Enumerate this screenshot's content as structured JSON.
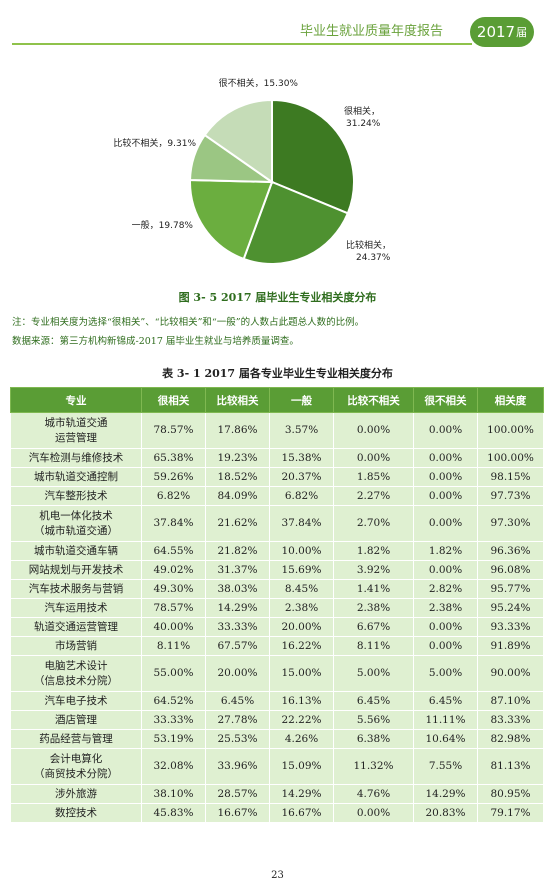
{
  "header": {
    "title": "毕业生就业质量年度报告",
    "year_main": "2017",
    "year_suffix": "届"
  },
  "chart_data": {
    "type": "pie",
    "title": "图 3- 5   2017 届毕业生专业相关度分布",
    "slices": [
      {
        "label": "很相关",
        "value": 31.24,
        "display": "31.24%",
        "color": "#3d7a22"
      },
      {
        "label": "比较相关",
        "value": 24.37,
        "display": "24.37%",
        "color": "#4e9130"
      },
      {
        "label": "一般",
        "value": 19.78,
        "display": "19.78%",
        "color": "#6bae3f"
      },
      {
        "label": "比较不相关",
        "value": 9.31,
        "display": "9.31%",
        "color": "#9bc683"
      },
      {
        "label": "很不相关",
        "value": 15.3,
        "display": "15.30%",
        "color": "#c5dcb7"
      }
    ]
  },
  "notes": {
    "note1": "注：专业相关度为选择“很相关”、“比较相关”和“一般”的人数占此题总人数的比例。",
    "note2": "数据来源：第三方机构新锦成-2017 届毕业生就业与培养质量调查。"
  },
  "table": {
    "caption": "表 3- 1   2017 届各专业毕业生专业相关度分布",
    "headers": [
      "专业",
      "很相关",
      "比较相关",
      "一般",
      "比较不相关",
      "很不相关",
      "相关度"
    ],
    "rows": [
      {
        "major": [
          "城市轨道交通",
          "运营管理"
        ],
        "vals": [
          "78.57%",
          "17.86%",
          "3.57%",
          "0.00%",
          "0.00%",
          "100.00%"
        ]
      },
      {
        "major": [
          "汽车检测与维修技术"
        ],
        "vals": [
          "65.38%",
          "19.23%",
          "15.38%",
          "0.00%",
          "0.00%",
          "100.00%"
        ]
      },
      {
        "major": [
          "城市轨道交通控制"
        ],
        "vals": [
          "59.26%",
          "18.52%",
          "20.37%",
          "1.85%",
          "0.00%",
          "98.15%"
        ]
      },
      {
        "major": [
          "汽车整形技术"
        ],
        "vals": [
          "6.82%",
          "84.09%",
          "6.82%",
          "2.27%",
          "0.00%",
          "97.73%"
        ]
      },
      {
        "major": [
          "机电一体化技术",
          "（城市轨道交通）"
        ],
        "vals": [
          "37.84%",
          "21.62%",
          "37.84%",
          "2.70%",
          "0.00%",
          "97.30%"
        ]
      },
      {
        "major": [
          "城市轨道交通车辆"
        ],
        "vals": [
          "64.55%",
          "21.82%",
          "10.00%",
          "1.82%",
          "1.82%",
          "96.36%"
        ]
      },
      {
        "major": [
          "网站规划与开发技术"
        ],
        "vals": [
          "49.02%",
          "31.37%",
          "15.69%",
          "3.92%",
          "0.00%",
          "96.08%"
        ]
      },
      {
        "major": [
          "汽车技术服务与营销"
        ],
        "vals": [
          "49.30%",
          "38.03%",
          "8.45%",
          "1.41%",
          "2.82%",
          "95.77%"
        ]
      },
      {
        "major": [
          "汽车运用技术"
        ],
        "vals": [
          "78.57%",
          "14.29%",
          "2.38%",
          "2.38%",
          "2.38%",
          "95.24%"
        ]
      },
      {
        "major": [
          "轨道交通运营管理"
        ],
        "vals": [
          "40.00%",
          "33.33%",
          "20.00%",
          "6.67%",
          "0.00%",
          "93.33%"
        ]
      },
      {
        "major": [
          "市场营销"
        ],
        "vals": [
          "8.11%",
          "67.57%",
          "16.22%",
          "8.11%",
          "0.00%",
          "91.89%"
        ]
      },
      {
        "major": [
          "电脑艺术设计",
          "（信息技术分院）"
        ],
        "vals": [
          "55.00%",
          "20.00%",
          "15.00%",
          "5.00%",
          "5.00%",
          "90.00%"
        ]
      },
      {
        "major": [
          "汽车电子技术"
        ],
        "vals": [
          "64.52%",
          "6.45%",
          "16.13%",
          "6.45%",
          "6.45%",
          "87.10%"
        ]
      },
      {
        "major": [
          "酒店管理"
        ],
        "vals": [
          "33.33%",
          "27.78%",
          "22.22%",
          "5.56%",
          "11.11%",
          "83.33%"
        ]
      },
      {
        "major": [
          "药品经营与管理"
        ],
        "vals": [
          "53.19%",
          "25.53%",
          "4.26%",
          "6.38%",
          "10.64%",
          "82.98%"
        ]
      },
      {
        "major": [
          "会计电算化",
          "（商贸技术分院）"
        ],
        "vals": [
          "32.08%",
          "33.96%",
          "15.09%",
          "11.32%",
          "7.55%",
          "81.13%"
        ]
      },
      {
        "major": [
          "涉外旅游"
        ],
        "vals": [
          "38.10%",
          "28.57%",
          "14.29%",
          "4.76%",
          "14.29%",
          "80.95%"
        ]
      },
      {
        "major": [
          "数控技术"
        ],
        "vals": [
          "45.83%",
          "16.67%",
          "16.67%",
          "0.00%",
          "20.83%",
          "79.17%"
        ]
      }
    ]
  },
  "page_number": "23"
}
